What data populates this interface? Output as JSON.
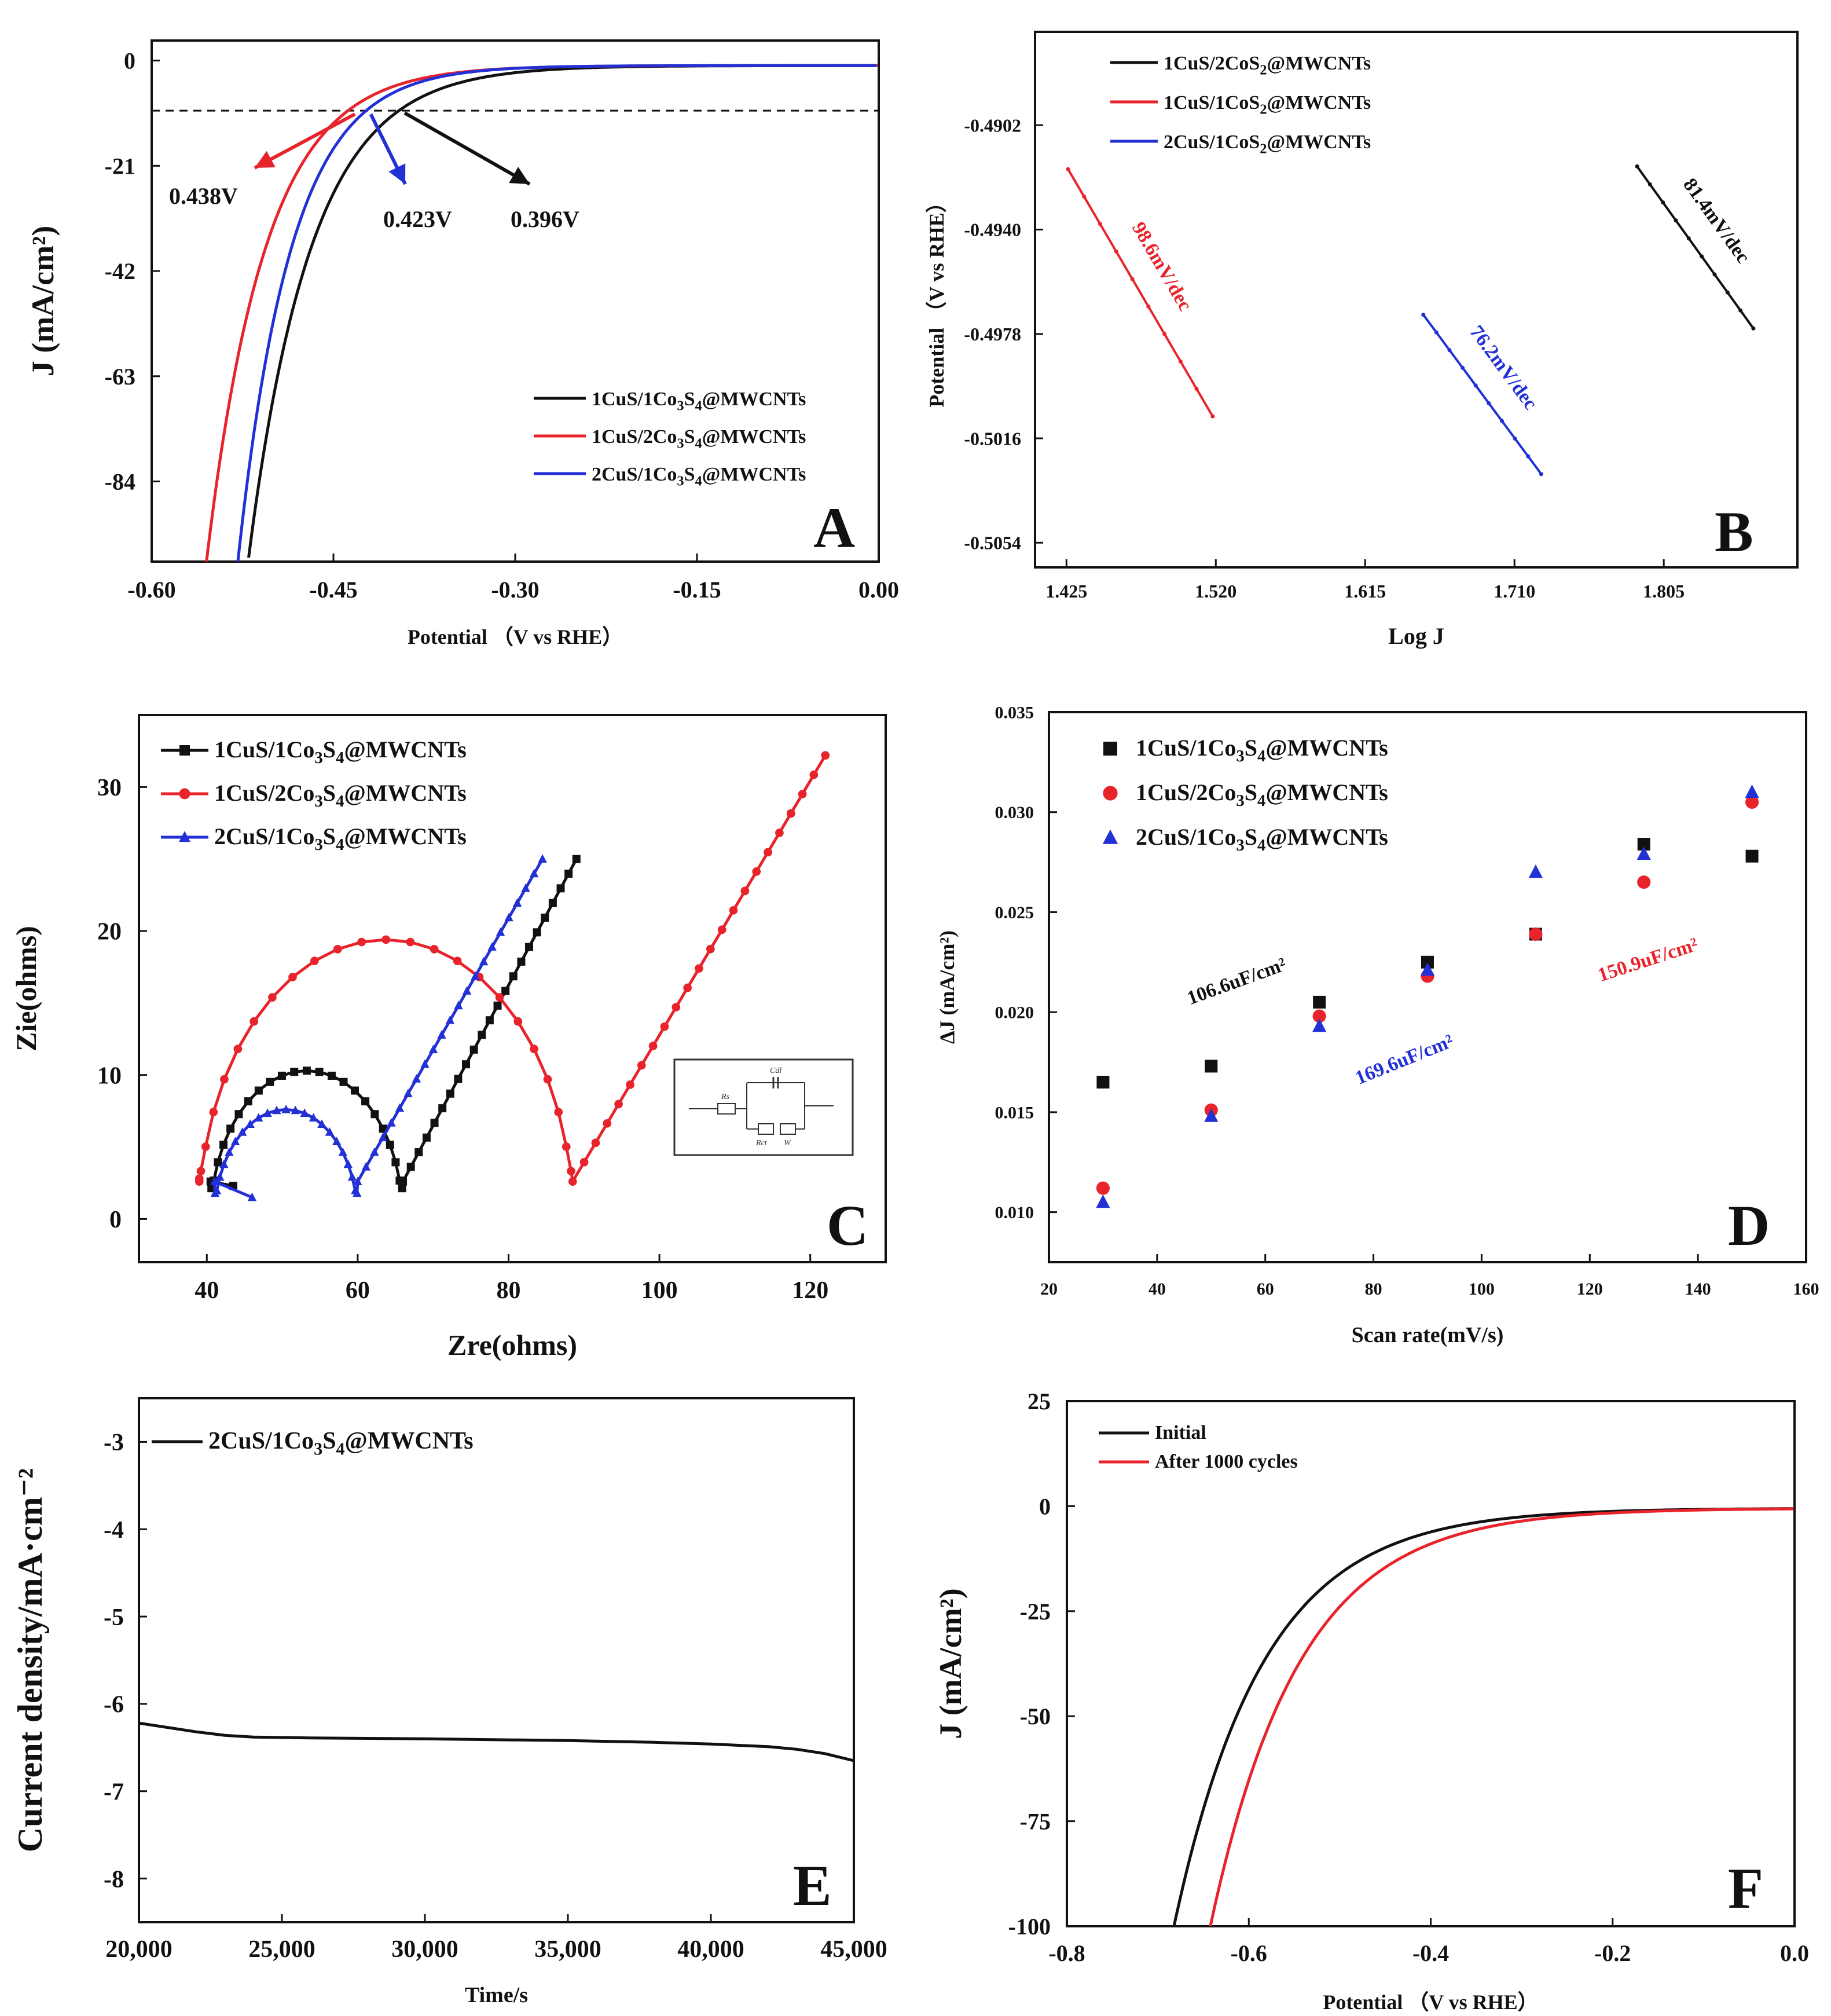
{
  "colors": {
    "black": "#111111",
    "red": "#e8232b",
    "blue": "#2230d6"
  },
  "chart_data": [
    {
      "panel": "A",
      "type": "line",
      "xlabel": "Potential （V vs RHE）",
      "ylabel": "J (mA/cm²)",
      "xlim": [
        -0.6,
        0.0
      ],
      "ylim": [
        -100,
        4
      ],
      "xticks": [
        -0.6,
        -0.45,
        -0.3,
        -0.15,
        0.0
      ],
      "xtick_labels": [
        "-0.60",
        "-0.45",
        "-0.30",
        "-0.15",
        "0.00"
      ],
      "yticks": [
        0,
        -21,
        -42,
        -63,
        -84
      ],
      "ytick_labels": [
        "0",
        "-21",
        "-42",
        "-63",
        "-84"
      ],
      "reference_line": -10,
      "series": [
        {
          "name": "1CuS/1Co3S4@MWCNTs",
          "color": "#111111",
          "onset": -0.396,
          "x100": -0.51
        },
        {
          "name": "1CuS/2Co3S4@MWCNTs",
          "color": "#e8232b",
          "onset": -0.438,
          "x100": -0.545
        },
        {
          "name": "2CuS/1Co3S4@MWCNTs",
          "color": "#2230d6",
          "onset": -0.423,
          "x100": -0.52
        }
      ],
      "annotations": [
        {
          "text": "0.438V",
          "color": "#e8232b"
        },
        {
          "text": "0.423V",
          "color": "#2230d6"
        },
        {
          "text": "0.396V",
          "color": "#111111"
        }
      ],
      "legend": [
        {
          "pre": "1CuS/1Co",
          "s1": "3",
          "mid": "S",
          "s2": "4",
          "post": "@MWCNTs",
          "color": "#111111"
        },
        {
          "pre": "1CuS/2Co",
          "s1": "3",
          "mid": "S",
          "s2": "4",
          "post": "@MWCNTs",
          "color": "#e8232b"
        },
        {
          "pre": "2CuS/1Co",
          "s1": "3",
          "mid": "S",
          "s2": "4",
          "post": "@MWCNTs",
          "color": "#2230d6"
        }
      ]
    },
    {
      "panel": "B",
      "type": "line",
      "xlabel": "Log J",
      "ylabel": "Potential （V vs RHE）",
      "xlim": [
        1.405,
        1.89
      ],
      "ylim": [
        -0.5063,
        -0.4868
      ],
      "xticks": [
        1.425,
        1.52,
        1.615,
        1.71,
        1.805
      ],
      "xtick_labels": [
        "1.425",
        "1.520",
        "1.615",
        "1.710",
        "1.805"
      ],
      "yticks": [
        -0.4902,
        -0.494,
        -0.4978,
        -0.5016,
        -0.5054
      ],
      "ytick_labels": [
        "-0.4902",
        "-0.4940",
        "-0.4978",
        "-0.5016",
        "-0.5054"
      ],
      "series": [
        {
          "name": "1CuS/2CoS2@MWCNTs",
          "color": "#111111",
          "x": [
            1.788,
            1.862
          ],
          "y": [
            -0.4917,
            -0.4976
          ],
          "slope": "81.4mV/dec"
        },
        {
          "name": "1CuS/1CoS2@MWCNTs",
          "color": "#e8232b",
          "x": [
            1.426,
            1.518
          ],
          "y": [
            -0.4918,
            -0.5008
          ],
          "slope": "98.6mV/dec"
        },
        {
          "name": "2CuS/1CoS2@MWCNTs",
          "color": "#2230d6",
          "x": [
            1.652,
            1.727
          ],
          "y": [
            -0.4971,
            -0.5029
          ],
          "slope": "76.2mV/dec"
        }
      ],
      "legend": [
        {
          "pre": "1CuS/2CoS",
          "s1": "2",
          "mid": "",
          "s2": "",
          "post": "@MWCNTs",
          "color": "#111111"
        },
        {
          "pre": "1CuS/1CoS",
          "s1": "2",
          "mid": "",
          "s2": "",
          "post": "@MWCNTs",
          "color": "#e8232b"
        },
        {
          "pre": "2CuS/1CoS",
          "s1": "2",
          "mid": "",
          "s2": "",
          "post": "@MWCNTs",
          "color": "#2230d6"
        }
      ]
    },
    {
      "panel": "C",
      "type": "scatter",
      "xlabel": "Zre(ohms)",
      "ylabel": "Zie(ohms)",
      "xlim": [
        31,
        130
      ],
      "ylim": [
        -3,
        35
      ],
      "xticks": [
        40,
        60,
        80,
        100,
        120
      ],
      "xtick_labels": [
        "40",
        "60",
        "80",
        "100",
        "120"
      ],
      "yticks": [
        0,
        10,
        20,
        30
      ],
      "ytick_labels": [
        "0",
        "10",
        "20",
        "30"
      ],
      "series": [
        {
          "name": "1CuS/1Co3S4@MWCNTs",
          "color": "#111111",
          "marker": "square",
          "semicircle": {
            "start": 40.5,
            "end": 66,
            "height": 10.3
          },
          "tail": [
            89,
            25
          ],
          "start_point": [
            43.5,
            2.3
          ]
        },
        {
          "name": "1CuS/2Co3S4@MWCNTs",
          "color": "#e8232b",
          "marker": "circle",
          "semicircle": {
            "start": 39,
            "end": 88.5,
            "height": 19.4
          },
          "tail": [
            122,
            32.2
          ],
          "start_point": [
            39,
            2.8
          ]
        },
        {
          "name": "2CuS/1Co3S4@MWCNTs",
          "color": "#2230d6",
          "marker": "triangle",
          "semicircle": {
            "start": 41,
            "end": 60,
            "height": 7.6
          },
          "tail": [
            84.5,
            25
          ],
          "start_point": [
            46,
            1.5
          ]
        }
      ],
      "inset_labels": [
        "Rs",
        "Cdl",
        "Rct",
        "W"
      ],
      "legend": [
        {
          "pre": "1CuS/1Co",
          "s1": "3",
          "mid": "S",
          "s2": "4",
          "post": "@MWCNTs",
          "color": "#111111"
        },
        {
          "pre": "1CuS/2Co",
          "s1": "3",
          "mid": "S",
          "s2": "4",
          "post": "@MWCNTs",
          "color": "#e8232b"
        },
        {
          "pre": "2CuS/1Co",
          "s1": "3",
          "mid": "S",
          "s2": "4",
          "post": "@MWCNTs",
          "color": "#2230d6"
        }
      ]
    },
    {
      "panel": "D",
      "type": "scatter",
      "xlabel": "Scan rate(mV/s)",
      "ylabel": "ΔJ (mA/cm²)",
      "xlim": [
        20,
        160
      ],
      "ylim": [
        0.0075,
        0.035
      ],
      "xticks": [
        20,
        40,
        60,
        80,
        100,
        120,
        140,
        160
      ],
      "xtick_labels": [
        "20",
        "40",
        "60",
        "80",
        "100",
        "120",
        "140",
        "160"
      ],
      "yticks": [
        0.01,
        0.015,
        0.02,
        0.025,
        0.03,
        0.035
      ],
      "ytick_labels": [
        "0.010",
        "0.015",
        "0.020",
        "0.025",
        "0.030",
        "0.035"
      ],
      "x": [
        30,
        50,
        70,
        90,
        110,
        130,
        150
      ],
      "series": [
        {
          "name": "1CuS/1Co3S4@MWCNTs",
          "color": "#111111",
          "marker": "square",
          "values": [
            0.0165,
            0.0173,
            0.0205,
            0.0225,
            0.0239,
            0.0284,
            0.0278
          ]
        },
        {
          "name": "1CuS/2Co3S4@MWCNTs",
          "color": "#e8232b",
          "marker": "circle",
          "values": [
            0.0112,
            0.0151,
            0.0198,
            0.0218,
            0.0239,
            0.0265,
            0.0305
          ]
        },
        {
          "name": "2CuS/1Co3S4@MWCNTs",
          "color": "#2230d6",
          "marker": "triangle",
          "values": [
            0.0105,
            0.0148,
            0.0193,
            0.0221,
            0.027,
            0.0279,
            0.031
          ]
        }
      ],
      "annotations": [
        {
          "text": "106.6uF/cm²",
          "color": "#111111"
        },
        {
          "text": "169.6uF/cm²",
          "color": "#2230d6"
        },
        {
          "text": "150.9uF/cm²",
          "color": "#e8232b"
        }
      ],
      "legend": [
        {
          "pre": "1CuS/1Co",
          "s1": "3",
          "mid": "S",
          "s2": "4",
          "post": "@MWCNTs",
          "color": "#111111"
        },
        {
          "pre": "1CuS/2Co",
          "s1": "3",
          "mid": "S",
          "s2": "4",
          "post": "@MWCNTs",
          "color": "#e8232b"
        },
        {
          "pre": "2CuS/1Co",
          "s1": "3",
          "mid": "S",
          "s2": "4",
          "post": "@MWCNTs",
          "color": "#2230d6"
        }
      ]
    },
    {
      "panel": "E",
      "type": "line",
      "xlabel": "Time/s",
      "ylabel": "Current density/mA·cm⁻²",
      "xlim": [
        20000,
        45000
      ],
      "ylim": [
        -8.5,
        -2.5
      ],
      "xticks": [
        20000,
        25000,
        30000,
        35000,
        40000,
        45000
      ],
      "xtick_labels": [
        "20,000",
        "25,000",
        "30,000",
        "35,000",
        "40,000",
        "45,000"
      ],
      "yticks": [
        -3,
        -4,
        -5,
        -6,
        -7,
        -8
      ],
      "ytick_labels": [
        "-3",
        "-4",
        "-5",
        "-6",
        "-7",
        "-8"
      ],
      "series": [
        {
          "name": "2CuS/1Co3S4@MWCNTs",
          "color": "#111111",
          "x": [
            20000,
            21000,
            22000,
            23000,
            24000,
            26000,
            30000,
            35000,
            38000,
            40000,
            42000,
            43000,
            44000,
            45000
          ],
          "y": [
            -6.22,
            -6.27,
            -6.32,
            -6.36,
            -6.38,
            -6.39,
            -6.4,
            -6.42,
            -6.44,
            -6.46,
            -6.49,
            -6.52,
            -6.57,
            -6.65
          ]
        }
      ],
      "legend": [
        {
          "pre": "2CuS/1Co",
          "s1": "3",
          "mid": "S",
          "s2": "4",
          "post": "@MWCNTs",
          "color": "#111111"
        }
      ]
    },
    {
      "panel": "F",
      "type": "line",
      "xlabel": "Potential （V vs RHE）",
      "ylabel": "J (mA/cm²)",
      "xlim": [
        -0.8,
        0.0
      ],
      "ylim": [
        -100,
        25
      ],
      "xticks": [
        -0.8,
        -0.6,
        -0.4,
        -0.2,
        0.0
      ],
      "xtick_labels": [
        "-0.8",
        "-0.6",
        "-0.4",
        "-0.2",
        "0.0"
      ],
      "yticks": [
        25,
        0,
        -25,
        -50,
        -75,
        -100
      ],
      "ytick_labels": [
        "25",
        "0",
        "-25",
        "-50",
        "-75",
        "-100"
      ],
      "series": [
        {
          "name": "Initial",
          "color": "#111111",
          "x100": -0.682
        },
        {
          "name": "After 1000 cycles",
          "color": "#e8232b",
          "x100": -0.642
        }
      ],
      "legend": [
        {
          "pre": "Initial",
          "s1": "",
          "mid": "",
          "s2": "",
          "post": "",
          "color": "#111111"
        },
        {
          "pre": "After 1000 cycles",
          "s1": "",
          "mid": "",
          "s2": "",
          "post": "",
          "color": "#e8232b"
        }
      ]
    }
  ]
}
